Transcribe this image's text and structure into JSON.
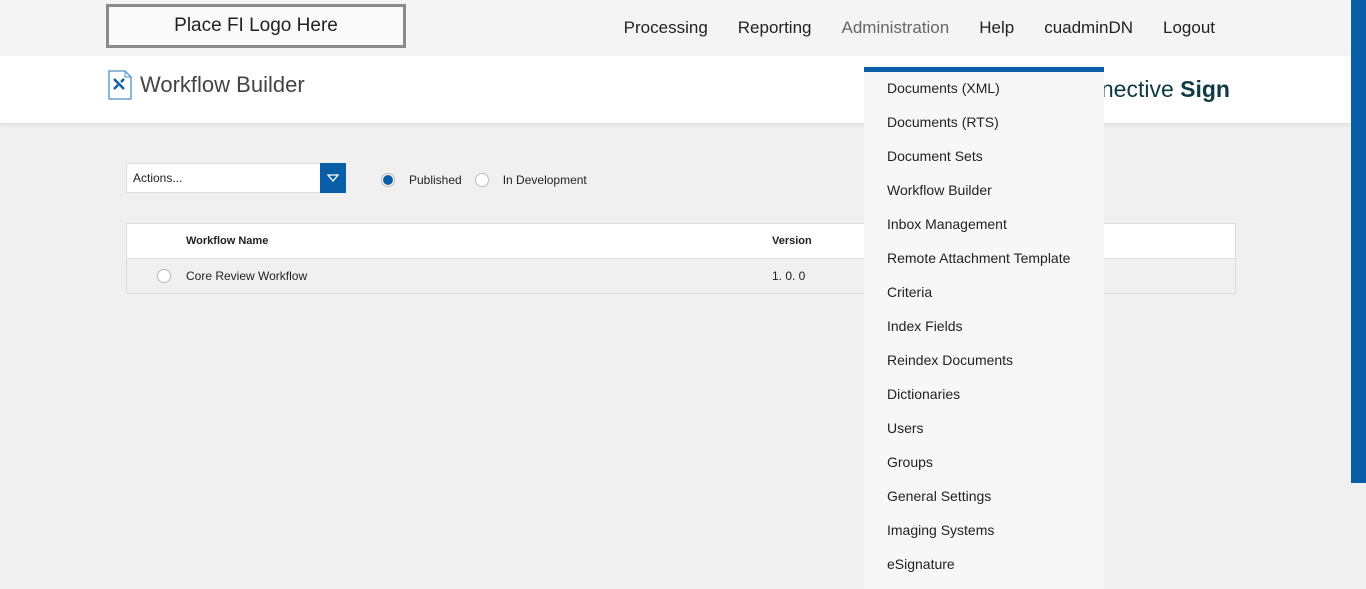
{
  "logo": "Place FI Logo Here",
  "nav": [
    "Processing",
    "Reporting",
    "Administration",
    "Help",
    "cuadminDN",
    "Logout"
  ],
  "page_title": "Workflow Builder",
  "brand": {
    "light": "nective",
    "bold": "Sign"
  },
  "actions": {
    "label": "Actions..."
  },
  "filters": {
    "published": "Published",
    "in_development": "In Development",
    "selected": "Published"
  },
  "table": {
    "headers": [
      "Workflow Name",
      "Version"
    ],
    "rows": [
      {
        "name": "Core Review Workflow",
        "version": "1. 0. 0"
      }
    ]
  },
  "admin_menu": [
    "Documents (XML)",
    "Documents (RTS)",
    "Document Sets",
    "Workflow Builder",
    "Inbox Management",
    "Remote Attachment Template",
    "Criteria",
    "Index Fields",
    "Reindex Documents",
    "Dictionaries",
    "Users",
    "Groups",
    "General Settings",
    "Imaging Systems",
    "eSignature"
  ],
  "colors": {
    "accent": "#0a5ea8"
  }
}
